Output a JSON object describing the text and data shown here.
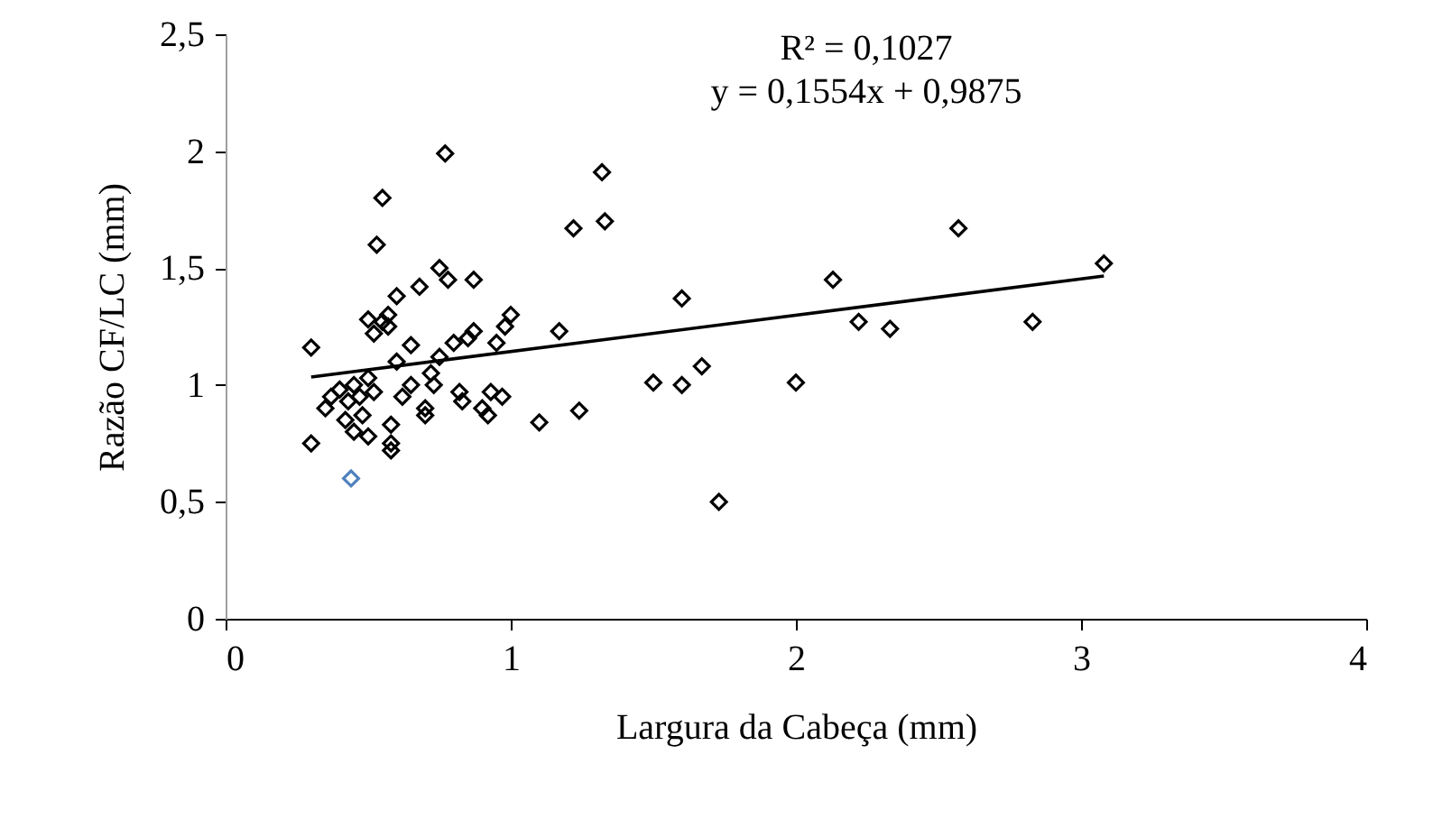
{
  "chart_data": {
    "type": "scatter",
    "xlabel": "Largura da Cabeça (mm)",
    "ylabel": "Razão CF/LC (mm)",
    "annotations": [
      "R² = 0,1027",
      "y = 0,1554x + 0,9875"
    ],
    "xlim": [
      0,
      4
    ],
    "xticks": [
      0,
      1,
      2,
      3,
      4
    ],
    "ylim": [
      0,
      2.5
    ],
    "yticks": [
      0,
      {
        "value": 0.5,
        "label": "0,5"
      },
      1,
      {
        "value": 1.5,
        "label": "1,5"
      },
      2,
      {
        "value": 2.5,
        "label": "2,5"
      }
    ],
    "grid": false,
    "marker": "diamond",
    "series": [
      {
        "color": "#000000",
        "x": [
          0.3,
          0.3,
          0.35,
          0.37,
          0.4,
          0.42,
          0.43,
          0.45,
          0.45,
          0.47,
          0.48,
          0.5,
          0.5,
          0.5,
          0.52,
          0.52,
          0.53,
          0.55,
          0.55,
          0.57,
          0.57,
          0.58,
          0.58,
          0.58,
          0.6,
          0.6,
          0.62,
          0.65,
          0.65,
          0.68,
          0.7,
          0.7,
          0.72,
          0.73,
          0.75,
          0.75,
          0.77,
          0.78,
          0.8,
          0.82,
          0.83,
          0.85,
          0.87,
          0.87,
          0.9,
          0.92,
          0.93,
          0.95,
          0.97,
          0.98,
          1.0,
          1.1,
          1.17,
          1.22,
          1.24,
          1.32,
          1.33,
          1.5,
          1.6,
          1.6,
          1.67,
          1.73,
          2.0,
          2.13,
          2.22,
          2.33,
          2.57,
          2.83,
          3.08
        ],
        "values": [
          1.16,
          0.75,
          0.9,
          0.95,
          0.98,
          0.85,
          0.93,
          0.8,
          1.0,
          0.95,
          0.87,
          1.03,
          1.28,
          0.78,
          1.22,
          0.97,
          1.6,
          1.8,
          1.27,
          1.3,
          1.25,
          0.83,
          0.75,
          0.72,
          1.38,
          1.1,
          0.95,
          1.0,
          1.17,
          1.42,
          0.9,
          0.87,
          1.05,
          1.0,
          1.5,
          1.12,
          1.99,
          1.45,
          1.18,
          0.97,
          0.93,
          1.2,
          1.45,
          1.23,
          0.9,
          0.87,
          0.97,
          1.18,
          0.95,
          1.25,
          1.3,
          0.84,
          1.23,
          1.67,
          0.89,
          1.91,
          1.7,
          1.01,
          1.37,
          1.0,
          1.08,
          0.5,
          1.01,
          1.45,
          1.27,
          1.24,
          1.67,
          1.27,
          1.52
        ]
      },
      {
        "color": "#4f81bd",
        "x": [
          0.44
        ],
        "values": [
          0.6
        ]
      },
      {
        "type": "line",
        "color": "#000000",
        "marker": "none",
        "x": [
          0.3,
          3.08
        ],
        "values": [
          1.034,
          1.466
        ]
      }
    ]
  }
}
